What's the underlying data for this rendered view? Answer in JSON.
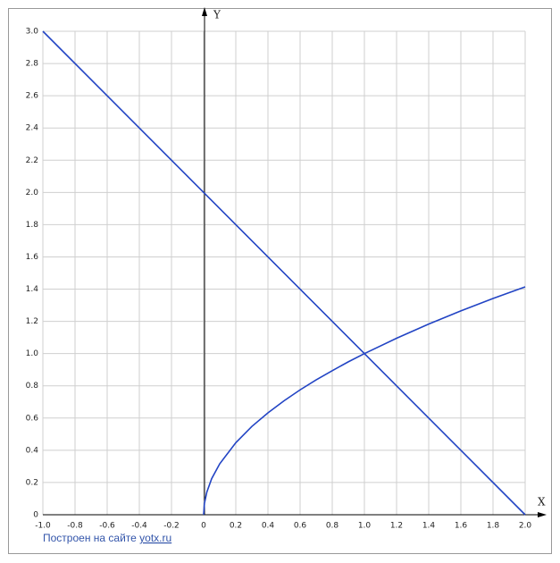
{
  "chart_data": {
    "type": "line",
    "x_label": "X",
    "y_label": "Y",
    "series": [
      {
        "color": "#2244c4",
        "x": [
          -1,
          2
        ],
        "values": [
          3,
          0
        ]
      },
      {
        "color": "#2244c4",
        "x": [
          0,
          0.005,
          0.02,
          0.05,
          0.1,
          0.2,
          0.3,
          0.4,
          0.5,
          0.6,
          0.7,
          0.8,
          0.9,
          1,
          1.2,
          1.4,
          1.6,
          1.8,
          2
        ],
        "values": [
          0,
          0.071,
          0.141,
          0.224,
          0.316,
          0.447,
          0.548,
          0.632,
          0.707,
          0.775,
          0.837,
          0.894,
          0.949,
          1,
          1.095,
          1.183,
          1.265,
          1.342,
          1.414
        ]
      }
    ],
    "xlim": [
      -1,
      2
    ],
    "xticks": [
      {
        "value": -1,
        "label": "-1.0"
      },
      -0.8,
      -0.6,
      -0.4,
      -0.2,
      0,
      0.2,
      0.4,
      0.6,
      0.8,
      {
        "value": 1,
        "label": "1.0"
      },
      1.2,
      1.4,
      1.6,
      1.8,
      {
        "value": 2,
        "label": "2.0"
      }
    ],
    "ylim": [
      0,
      3
    ],
    "yticks": [
      0,
      0.2,
      0.4,
      0.6,
      0.8,
      {
        "value": 1,
        "label": "1.0"
      },
      1.2,
      1.4,
      1.6,
      1.8,
      {
        "value": 2,
        "label": "2.0"
      },
      2.2,
      2.4,
      2.6,
      2.8,
      {
        "value": 3,
        "label": "3.0"
      }
    ],
    "grid": true,
    "footer": {
      "text": "Построен на сайте",
      "link": "yotx.ru"
    }
  }
}
